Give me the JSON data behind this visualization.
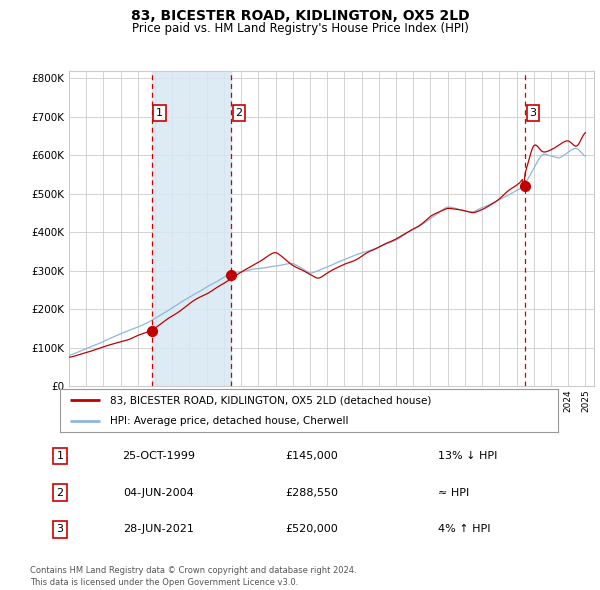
{
  "title": "83, BICESTER ROAD, KIDLINGTON, OX5 2LD",
  "subtitle": "Price paid vs. HM Land Registry's House Price Index (HPI)",
  "hpi_label": "HPI: Average price, detached house, Cherwell",
  "property_label": "83, BICESTER ROAD, KIDLINGTON, OX5 2LD (detached house)",
  "sale_dates_decimal": [
    1999.8137,
    2004.4274,
    2021.4932
  ],
  "sale_prices": [
    145000,
    288550,
    520000
  ],
  "sale_labels": [
    "1",
    "2",
    "3"
  ],
  "ylim": [
    0,
    820000
  ],
  "yticks": [
    0,
    100000,
    200000,
    300000,
    400000,
    500000,
    600000,
    700000,
    800000
  ],
  "ytick_labels": [
    "£0",
    "£100K",
    "£200K",
    "£300K",
    "£400K",
    "£500K",
    "£600K",
    "£700K",
    "£800K"
  ],
  "hpi_color": "#8db8d8",
  "price_color": "#c00000",
  "sale_dot_color": "#c00000",
  "vline_color": "#cc0000",
  "shade_color": "#d8e8f4",
  "grid_color": "#cccccc",
  "bg_color": "#ffffff",
  "table_rows": [
    {
      "num": "1",
      "date": "25-OCT-1999",
      "price": "£145,000",
      "hpi": "13% ↓ HPI"
    },
    {
      "num": "2",
      "date": "04-JUN-2004",
      "price": "£288,550",
      "hpi": "≈ HPI"
    },
    {
      "num": "3",
      "date": "28-JUN-2021",
      "price": "£520,000",
      "hpi": "4% ↑ HPI"
    }
  ],
  "footnote": "Contains HM Land Registry data © Crown copyright and database right 2024.\nThis data is licensed under the Open Government Licence v3.0.",
  "x_start_year": 1995,
  "x_end_year": 2025
}
